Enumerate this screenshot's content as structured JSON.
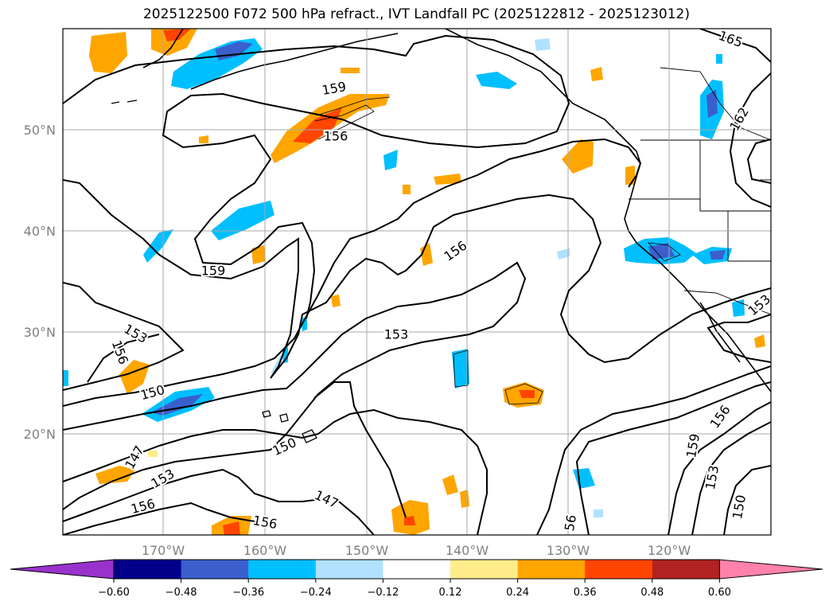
{
  "title": "2025122500 F072 500 hPa refract., IVT Landfall PC (2025122812 - 2025123012)",
  "map": {
    "lat_labels": [
      "50°N",
      "40°N",
      "30°N",
      "20°N"
    ],
    "lon_labels": [
      "170°W",
      "160°W",
      "150°W",
      "140°W",
      "130°W",
      "120°W"
    ],
    "contour_labels": [
      {
        "text": "165",
        "rot": 20
      },
      {
        "text": "162",
        "rot": -60
      },
      {
        "text": "159",
        "rot": -10
      },
      {
        "text": "156",
        "rot": 0
      },
      {
        "text": "159",
        "rot": 0
      },
      {
        "text": "156",
        "rot": -35
      },
      {
        "text": "153",
        "rot": 0
      },
      {
        "text": "153",
        "rot": 30
      },
      {
        "text": "156",
        "rot": 70
      },
      {
        "text": "150",
        "rot": -15
      },
      {
        "text": "150",
        "rot": -25
      },
      {
        "text": "147",
        "rot": -60
      },
      {
        "text": "153",
        "rot": -30
      },
      {
        "text": "156",
        "rot": -15
      },
      {
        "text": "147",
        "rot": 25
      },
      {
        "text": "156",
        "rot": 10
      },
      {
        "text": "56",
        "rot": -80
      },
      {
        "text": "159",
        "rot": -80
      },
      {
        "text": "156",
        "rot": -55
      },
      {
        "text": "153",
        "rot": -80
      },
      {
        "text": "150",
        "rot": -80
      },
      {
        "text": "153",
        "rot": -40
      }
    ]
  },
  "colorbar": {
    "colors": [
      "#9932cc",
      "#00008b",
      "#3a5fcd",
      "#00bfff",
      "#b0e2ff",
      "#ffffff",
      "#ffec8b",
      "#ffa500",
      "#ff4500",
      "#b22222",
      "#ff82ab"
    ],
    "ticks": [
      "−0.60",
      "−0.48",
      "−0.36",
      "−0.24",
      "−0.12",
      "0.12",
      "0.24",
      "0.36",
      "0.48",
      "0.60"
    ]
  }
}
